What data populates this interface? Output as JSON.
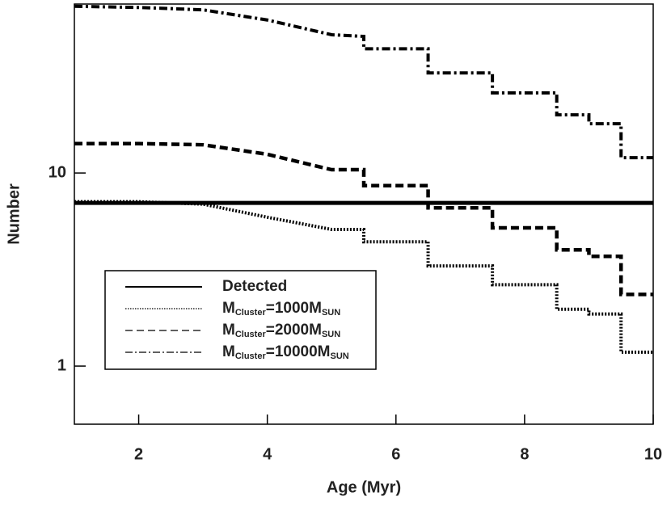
{
  "chart_data": {
    "type": "line",
    "x_label": "Age (Myr)",
    "y_label": "Number",
    "x": [
      1,
      2,
      3,
      4,
      5,
      5.5,
      5.5,
      6.5,
      6.5,
      7.5,
      7.5,
      8.5,
      8.5,
      9,
      9,
      9.5,
      9.5,
      10
    ],
    "series": [
      {
        "name": [
          "Detected"
        ],
        "color": "#000000",
        "style": "solid",
        "values": [
          7,
          7,
          7,
          7,
          7,
          7,
          7,
          7,
          7,
          7,
          7,
          7,
          7,
          7,
          7,
          7,
          7,
          7
        ]
      },
      {
        "name": [
          "M",
          "Cluster",
          "=1000M",
          "SUN"
        ],
        "color": "#000000",
        "style": "dotted",
        "values": [
          7.1,
          7.1,
          6.9,
          5.9,
          5.1,
          5.1,
          4.4,
          4.4,
          3.3,
          3.3,
          2.64,
          2.64,
          1.97,
          1.97,
          1.86,
          1.86,
          1.18,
          1.18
        ]
      },
      {
        "name": [
          "M",
          "Cluster",
          "=2000M",
          "SUN"
        ],
        "color": "#000000",
        "style": "dashed",
        "values": [
          14.2,
          14.2,
          14.0,
          12.5,
          10.4,
          10.4,
          8.6,
          8.6,
          6.6,
          6.6,
          5.2,
          5.2,
          4.0,
          4.0,
          3.7,
          3.7,
          2.35,
          2.35
        ]
      },
      {
        "name": [
          "M",
          "Cluster",
          "=10000M",
          "SUN"
        ],
        "color": "#000000",
        "style": "dashdot",
        "values": [
          73,
          72,
          70,
          62,
          52,
          51,
          44,
          44,
          33,
          33,
          26,
          26,
          20,
          20,
          18,
          18,
          12,
          12
        ]
      }
    ],
    "xlim": [
      1,
      10
    ],
    "xticks": [
      2,
      4,
      6,
      8,
      10
    ],
    "ylim": [
      0.5,
      75
    ],
    "yticks": [
      1,
      10
    ],
    "log_y": true,
    "grid": false,
    "legend": "lower left"
  }
}
